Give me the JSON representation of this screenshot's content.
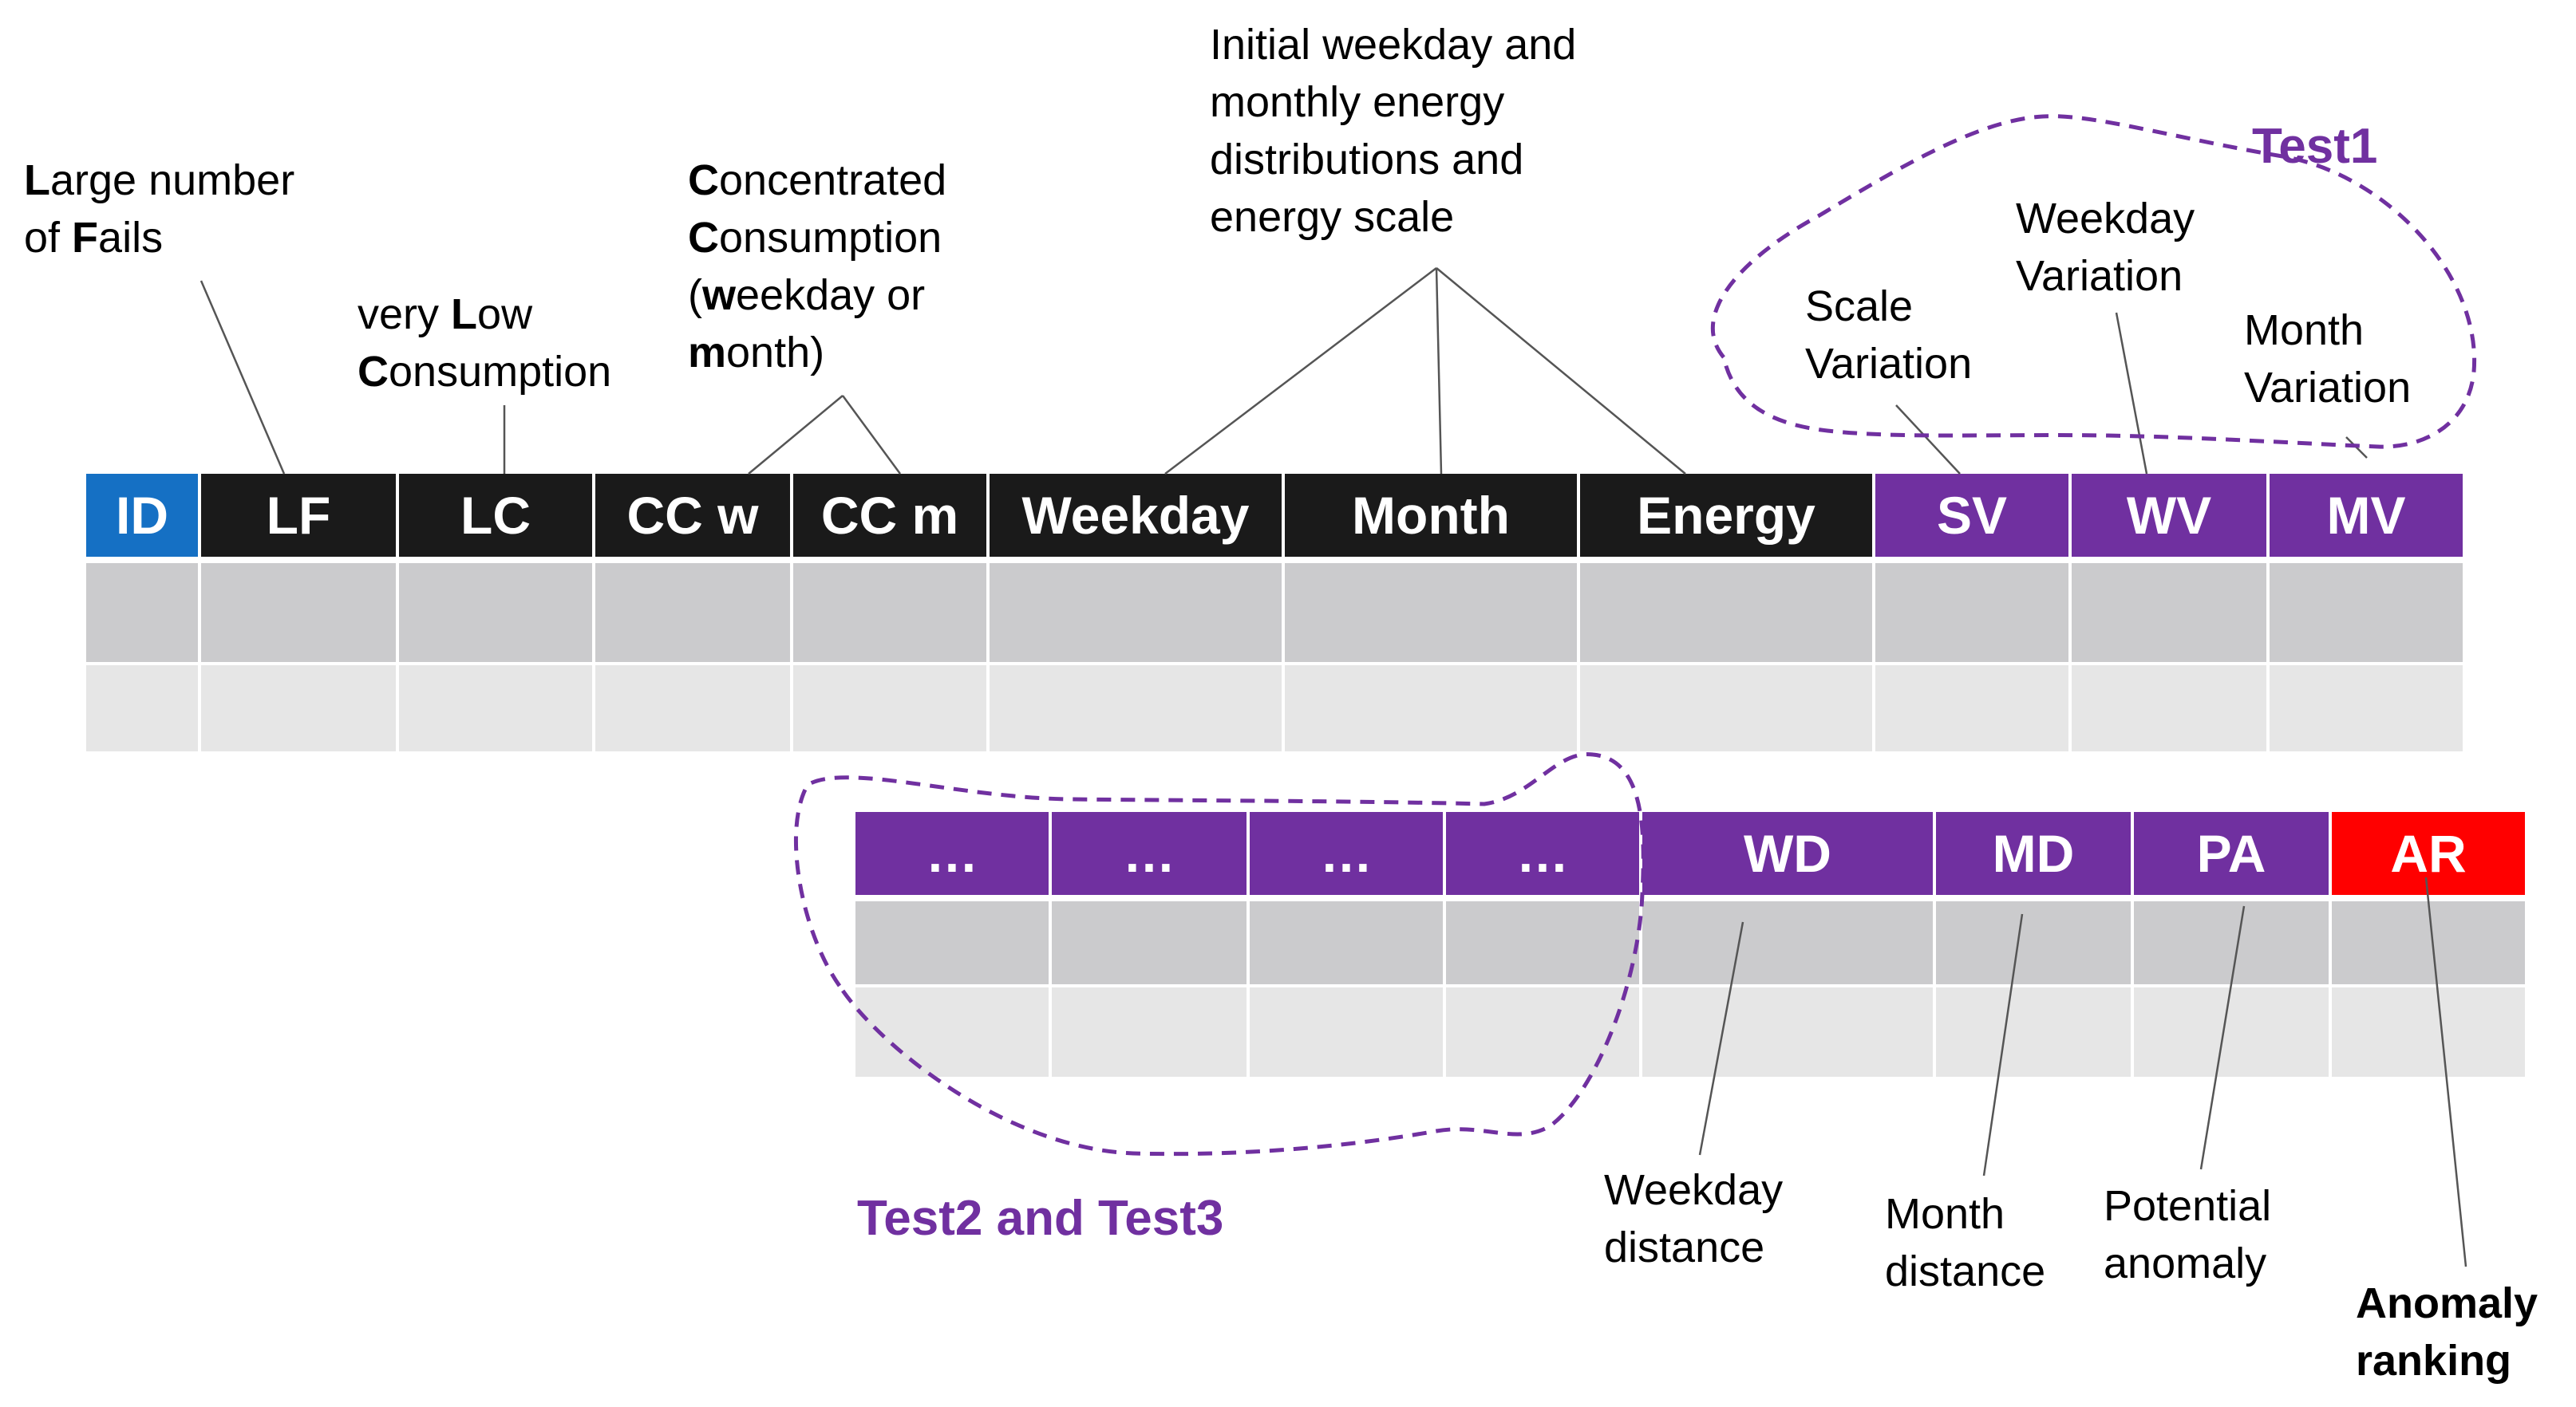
{
  "colors": {
    "black": "#1a1a1a",
    "blue": "#1570c4",
    "purple": "#7030a0",
    "red": "#ff0000",
    "row_dark": "#cbcbcd",
    "row_light": "#e6e6e6"
  },
  "table1": {
    "headers": [
      "ID",
      "LF",
      "LC",
      "CC w",
      "CC m",
      "Weekday",
      "Month",
      "Energy",
      "SV",
      "WV",
      "MV"
    ]
  },
  "table2": {
    "headers": [
      "…",
      "…",
      "…",
      "…",
      "WD",
      "MD",
      "PA",
      "AR"
    ]
  },
  "labels": {
    "lf": [
      "arge number",
      "of ",
      "ails"
    ],
    "lf_initials": [
      "L",
      "F"
    ],
    "lc": [
      "very ",
      "ow",
      "onsumption"
    ],
    "lc_initials": [
      "L",
      "C"
    ],
    "cc": [
      "oncentrated",
      "onsumption",
      "(",
      "eekday or",
      "onth)"
    ],
    "cc_initials": [
      "C",
      "C",
      "w",
      "m"
    ],
    "initial": [
      "Initial weekday and",
      "monthly energy",
      "distributions and",
      "energy scale"
    ],
    "sv": [
      "Scale",
      "Variation"
    ],
    "wv": [
      "Weekday",
      "Variation"
    ],
    "mv": [
      "Month",
      "Variation"
    ],
    "wd": [
      "Weekday",
      "distance"
    ],
    "md": [
      "Month",
      "distance"
    ],
    "pa": [
      "Potential",
      "anomaly"
    ],
    "ar": [
      "Anomaly",
      "ranking"
    ]
  },
  "tests": {
    "test1": "Test1",
    "test23": "Test2 and Test3"
  }
}
